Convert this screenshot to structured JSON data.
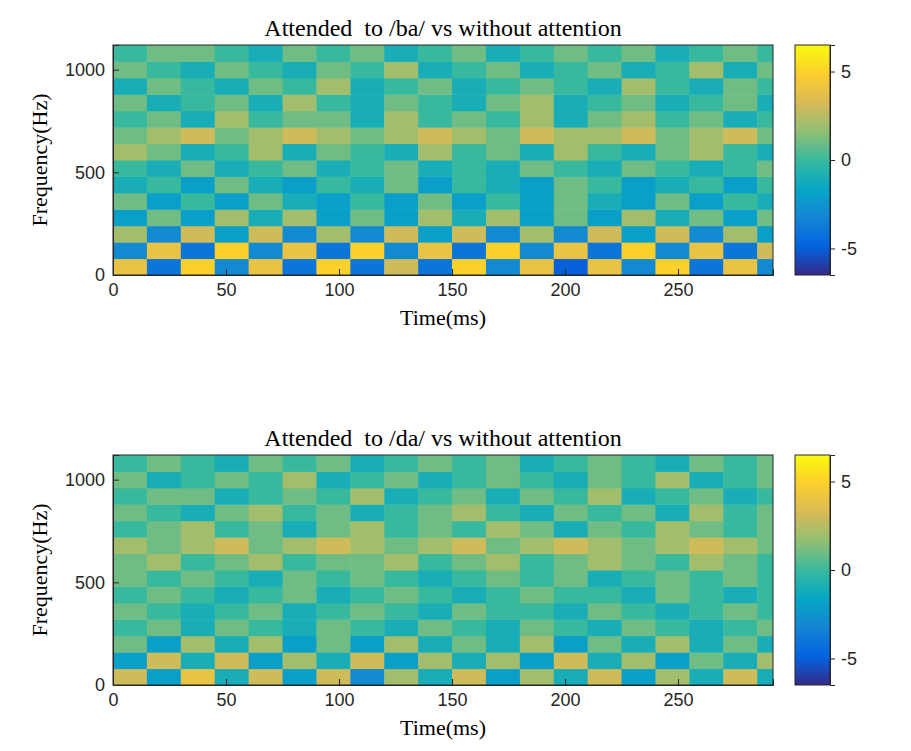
{
  "chart_data": [
    {
      "type": "heatmap",
      "title": "Attended  to /ba/ vs without attention",
      "x_label": "Time(ms)",
      "y_label": "Frequency(Hz)",
      "xlim": [
        0,
        292
      ],
      "xticks": [
        0,
        50,
        100,
        150,
        200,
        250
      ],
      "ylim": [
        0,
        1120
      ],
      "yticks": [
        0,
        500,
        1000
      ],
      "x_edges": [
        0,
        15,
        30,
        45,
        60,
        75,
        90,
        105,
        120,
        135,
        150,
        165,
        180,
        195,
        210,
        225,
        240,
        255,
        270,
        285,
        292
      ],
      "y_edges": [
        0,
        80,
        160,
        240,
        320,
        400,
        480,
        560,
        640,
        720,
        800,
        880,
        960,
        1040,
        1120
      ],
      "z": [
        [
          4,
          -4,
          5,
          -3,
          4,
          -4,
          5,
          -4,
          3,
          -4,
          5,
          -3,
          4,
          -5,
          4,
          -3,
          5,
          -4,
          4,
          -3
        ],
        [
          -3,
          4,
          -4,
          5,
          -3,
          4,
          -4,
          5,
          -3,
          4,
          -4,
          5,
          -3,
          4,
          -4,
          5,
          -3,
          4,
          -4,
          3
        ],
        [
          2,
          -3,
          3,
          -2,
          3,
          -3,
          2,
          -3,
          3,
          -2,
          3,
          -3,
          2,
          -3,
          3,
          -2,
          3,
          -3,
          2,
          -2
        ],
        [
          -2,
          1,
          -2,
          2,
          -1,
          2,
          -2,
          1,
          -2,
          2,
          -1,
          2,
          -2,
          1,
          -2,
          2,
          -1,
          1,
          -2,
          1
        ],
        [
          1,
          -2,
          0,
          -2,
          1,
          -1,
          -2,
          0,
          -2,
          1,
          -2,
          0,
          -2,
          1,
          -1,
          -2,
          1,
          -2,
          0,
          -1
        ],
        [
          -1,
          0,
          -2,
          1,
          -1,
          -2,
          0,
          -1,
          1,
          -2,
          0,
          -1,
          -2,
          1,
          0,
          -2,
          -1,
          0,
          -2,
          0
        ],
        [
          0,
          -1,
          1,
          -1,
          0,
          1,
          -1,
          0,
          1,
          -1,
          0,
          -1,
          1,
          0,
          -1,
          1,
          0,
          -1,
          0,
          1
        ],
        [
          2,
          1,
          -1,
          0,
          2,
          -1,
          1,
          0,
          -1,
          2,
          0,
          1,
          -1,
          2,
          0,
          -1,
          1,
          2,
          0,
          -1
        ],
        [
          1,
          2,
          3,
          1,
          2,
          3,
          2,
          1,
          2,
          3,
          2,
          1,
          3,
          2,
          2,
          3,
          1,
          2,
          3,
          1
        ],
        [
          0,
          1,
          -1,
          2,
          0,
          1,
          1,
          -1,
          2,
          0,
          1,
          0,
          2,
          -1,
          1,
          2,
          0,
          1,
          -1,
          0
        ],
        [
          1,
          -1,
          0,
          1,
          -1,
          2,
          0,
          -1,
          1,
          0,
          -1,
          1,
          2,
          -1,
          0,
          1,
          -1,
          0,
          1,
          -1
        ],
        [
          -1,
          1,
          0,
          -1,
          1,
          0,
          2,
          -1,
          0,
          1,
          -1,
          0,
          1,
          0,
          -1,
          2,
          0,
          -1,
          1,
          0
        ],
        [
          1,
          0,
          -1,
          1,
          0,
          -1,
          1,
          0,
          2,
          -1,
          0,
          1,
          -1,
          0,
          1,
          -1,
          0,
          2,
          -1,
          1
        ],
        [
          0,
          1,
          1,
          0,
          -1,
          1,
          0,
          1,
          -1,
          0,
          1,
          -1,
          0,
          1,
          0,
          1,
          -1,
          0,
          1,
          0
        ]
      ],
      "colorbar": {
        "range": [
          -6.5,
          6.5
        ],
        "ticks": [
          -5,
          0,
          5
        ]
      }
    },
    {
      "type": "heatmap",
      "title": "Attended  to /da/ vs without attention",
      "x_label": "Time(ms)",
      "y_label": "Frequency(Hz)",
      "xlim": [
        0,
        292
      ],
      "xticks": [
        0,
        50,
        100,
        150,
        200,
        250
      ],
      "ylim": [
        0,
        1120
      ],
      "yticks": [
        0,
        500,
        1000
      ],
      "x_edges": [
        0,
        15,
        30,
        45,
        60,
        75,
        90,
        105,
        120,
        135,
        150,
        165,
        180,
        195,
        210,
        225,
        240,
        255,
        270,
        285,
        292
      ],
      "y_edges": [
        0,
        80,
        160,
        240,
        320,
        400,
        480,
        560,
        640,
        720,
        800,
        880,
        960,
        1040,
        1120
      ],
      "z": [
        [
          3,
          -2,
          4,
          -1,
          3,
          -2,
          3,
          -3,
          2,
          -1,
          3,
          -2,
          2,
          -1,
          3,
          -2,
          2,
          -1,
          3,
          -1
        ],
        [
          -2,
          3,
          -1,
          3,
          -2,
          2,
          -1,
          3,
          -2,
          2,
          -1,
          2,
          -2,
          3,
          -1,
          2,
          -2,
          1,
          -1,
          2
        ],
        [
          1,
          -2,
          2,
          -1,
          2,
          -2,
          1,
          -2,
          2,
          -1,
          1,
          -1,
          2,
          -2,
          1,
          -1,
          2,
          -1,
          1,
          -1
        ],
        [
          0,
          1,
          -1,
          1,
          0,
          -1,
          1,
          0,
          -1,
          1,
          0,
          -1,
          1,
          0,
          -1,
          1,
          0,
          -1,
          0,
          1
        ],
        [
          1,
          0,
          -1,
          0,
          1,
          -1,
          0,
          1,
          0,
          -1,
          1,
          0,
          0,
          -1,
          1,
          0,
          -1,
          0,
          1,
          0
        ],
        [
          0,
          1,
          0,
          -1,
          0,
          1,
          -1,
          0,
          1,
          0,
          -1,
          0,
          1,
          0,
          0,
          -1,
          1,
          0,
          -1,
          0
        ],
        [
          1,
          0,
          1,
          0,
          -1,
          1,
          0,
          1,
          0,
          -1,
          0,
          1,
          0,
          1,
          -1,
          0,
          1,
          0,
          1,
          0
        ],
        [
          1,
          2,
          0,
          1,
          2,
          0,
          1,
          1,
          2,
          0,
          1,
          2,
          0,
          1,
          2,
          1,
          0,
          2,
          1,
          0
        ],
        [
          2,
          1,
          2,
          3,
          1,
          2,
          3,
          2,
          1,
          2,
          3,
          1,
          2,
          3,
          2,
          1,
          2,
          3,
          2,
          1
        ],
        [
          0,
          1,
          2,
          0,
          1,
          -1,
          1,
          2,
          0,
          1,
          0,
          2,
          1,
          -1,
          1,
          0,
          2,
          1,
          0,
          1
        ],
        [
          1,
          0,
          -1,
          1,
          2,
          0,
          1,
          -1,
          0,
          1,
          2,
          0,
          -1,
          1,
          0,
          1,
          -1,
          2,
          0,
          1
        ],
        [
          0,
          1,
          1,
          -1,
          0,
          1,
          0,
          2,
          -1,
          0,
          1,
          -1,
          1,
          0,
          2,
          -1,
          0,
          1,
          -1,
          0
        ],
        [
          1,
          -1,
          0,
          1,
          0,
          2,
          -1,
          0,
          1,
          -1,
          0,
          1,
          0,
          -1,
          1,
          0,
          2,
          -1,
          0,
          1
        ],
        [
          0,
          1,
          0,
          -1,
          1,
          0,
          1,
          -1,
          0,
          1,
          0,
          1,
          -1,
          0,
          1,
          0,
          -1,
          1,
          0,
          1
        ]
      ],
      "colorbar": {
        "range": [
          -6.5,
          6.5
        ],
        "ticks": [
          -5,
          0,
          5
        ]
      }
    }
  ]
}
